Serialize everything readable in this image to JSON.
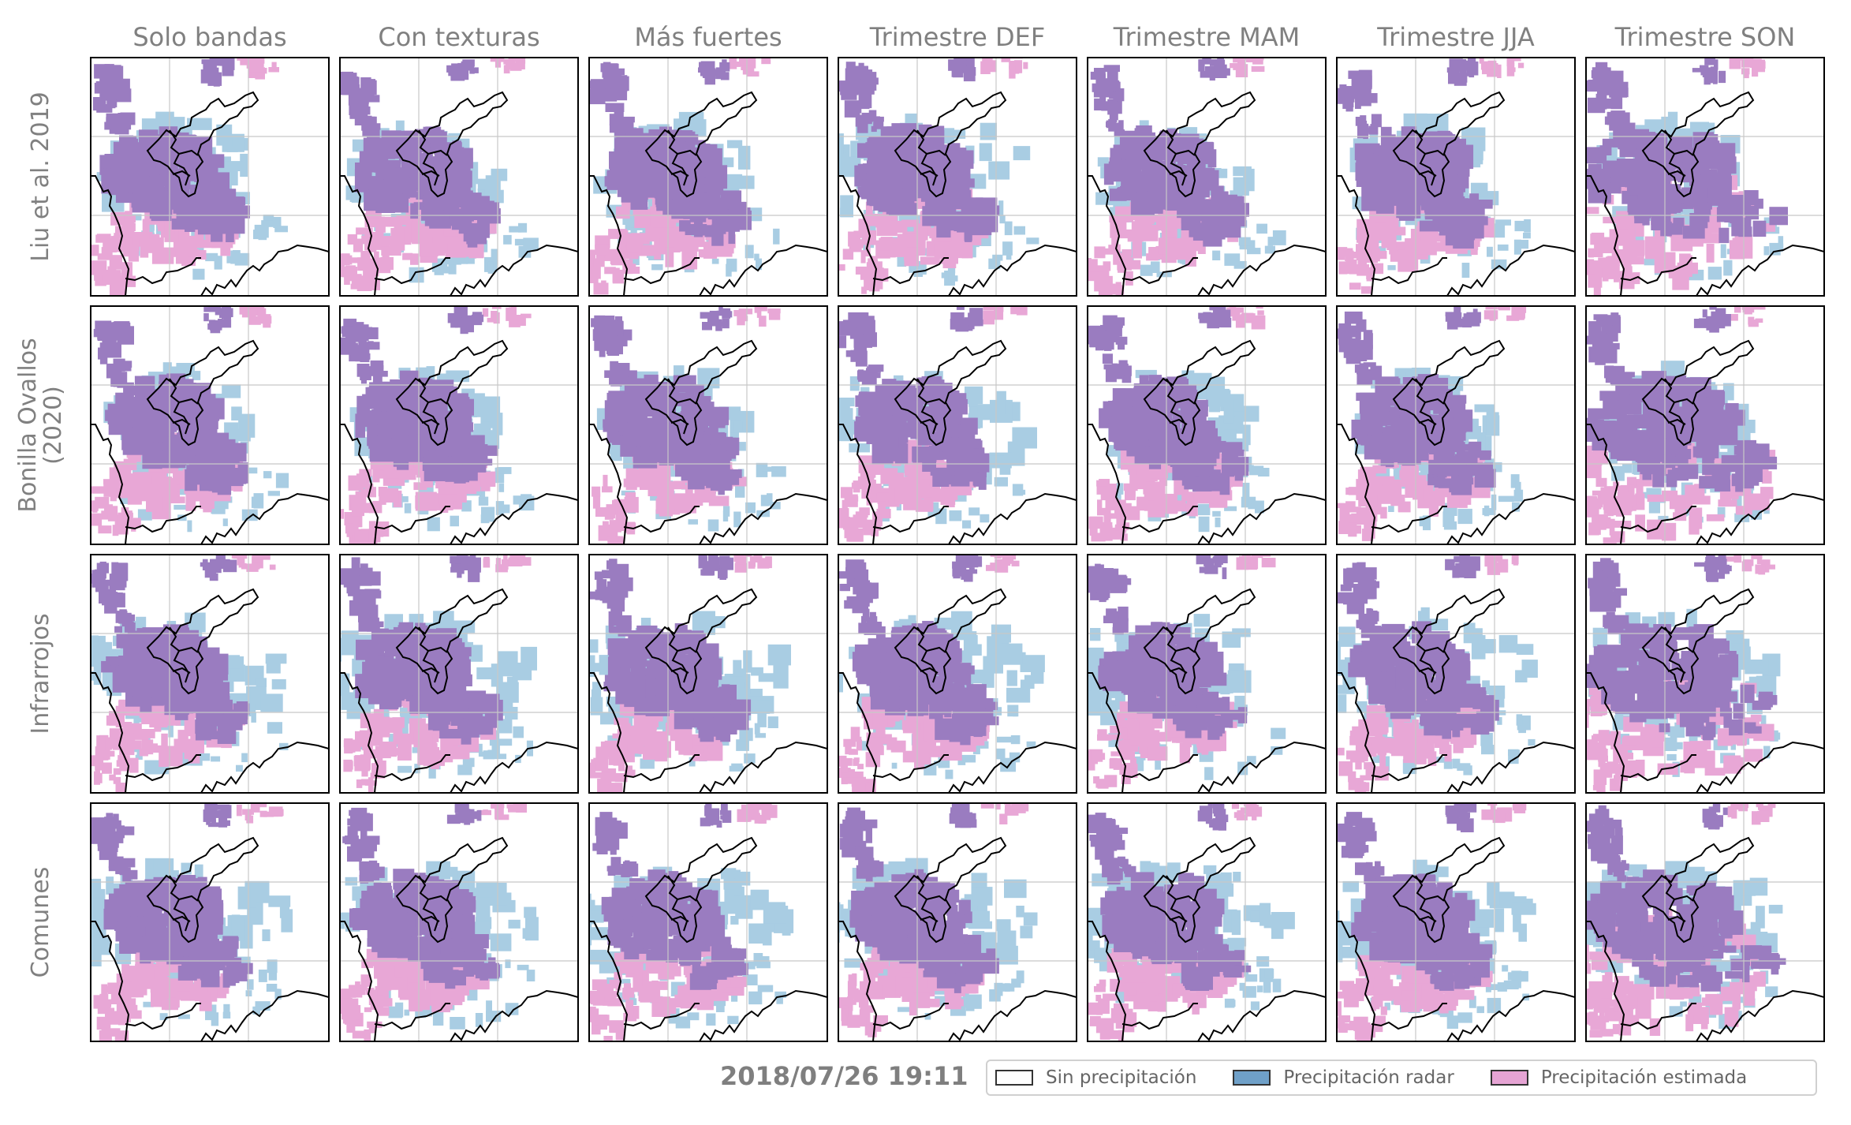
{
  "chart_data": {
    "type": "heatmap",
    "timestamp": "2018/07/26 19:11",
    "columns": [
      "Solo bandas",
      "Con texturas",
      "Más fuertes",
      "Trimestre DEF",
      "Trimestre MAM",
      "Trimestre JJA",
      "Trimestre SON"
    ],
    "rows": [
      {
        "label_lines": [
          "Liu et al. 2019"
        ]
      },
      {
        "label_lines": [
          "Bonilla Ovallos",
          "(2020)"
        ]
      },
      {
        "label_lines": [
          "Infrarrojos"
        ]
      },
      {
        "label_lines": [
          "Comunes"
        ]
      }
    ],
    "legend": [
      {
        "label": "Sin precipitación",
        "color": "#ffffff"
      },
      {
        "label": "Precipitación radar",
        "color": "#6fa0c8"
      },
      {
        "label": "Precipitación estimada",
        "color": "#e6a4d4"
      }
    ],
    "category_colors": {
      "radar": "#a9cde3",
      "estimada": "#e8a7d6",
      "ambas": "#9a7cc0"
    },
    "grid": true,
    "legend_position": "bottom-right"
  }
}
